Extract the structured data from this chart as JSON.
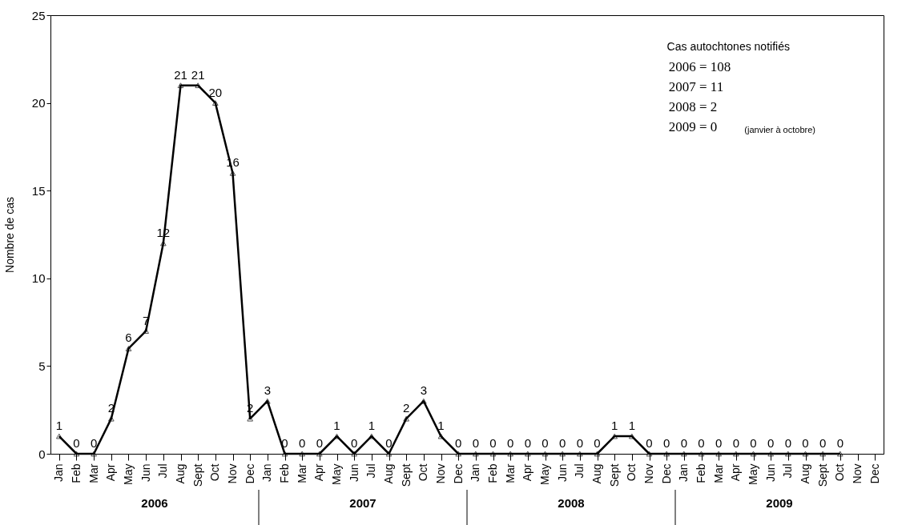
{
  "chart_data": {
    "type": "line",
    "ylabel": "Nombre de cas",
    "categories": [
      "Jan",
      "Feb",
      "Mar",
      "Apr",
      "May",
      "Jun",
      "Jul",
      "Aug",
      "Sept",
      "Oct",
      "Nov",
      "Dec",
      "Jan",
      "Feb",
      "Mar",
      "Apr",
      "May",
      "Jun",
      "Jul",
      "Aug",
      "Sept",
      "Oct",
      "Nov",
      "Dec",
      "Jan",
      "Feb",
      "Mar",
      "Apr",
      "May",
      "Jun",
      "Jul",
      "Aug",
      "Sept",
      "Oct",
      "Nov",
      "Dec",
      "Jan",
      "Feb",
      "Mar",
      "Apr",
      "May",
      "Jun",
      "Jul",
      "Aug",
      "Sept",
      "Oct",
      "Nov",
      "Dec"
    ],
    "series": [
      {
        "color": "#000000",
        "values": [
          1,
          0,
          0,
          2,
          6,
          7,
          12,
          21,
          21,
          20,
          16,
          2,
          3,
          0,
          0,
          0,
          1,
          0,
          1,
          0,
          2,
          3,
          1,
          0,
          0,
          0,
          0,
          0,
          0,
          0,
          0,
          0,
          1,
          1,
          0,
          0,
          0,
          0,
          0,
          0,
          0,
          0,
          0,
          0,
          0,
          0,
          null,
          null
        ]
      }
    ],
    "ylim": [
      0,
      25
    ],
    "yticks": [
      0,
      5,
      10,
      15,
      20,
      25
    ],
    "grid": false,
    "marker": "triangle",
    "line_style": "solid",
    "data_labels": true,
    "annotations": [
      "2006",
      "2007",
      "2008",
      "2009",
      "Cas autochtones notifiés",
      "2006 = 108",
      "2007 = 11",
      "2008 = 2",
      "2009 = 0",
      "(janvier à octobre)"
    ]
  }
}
